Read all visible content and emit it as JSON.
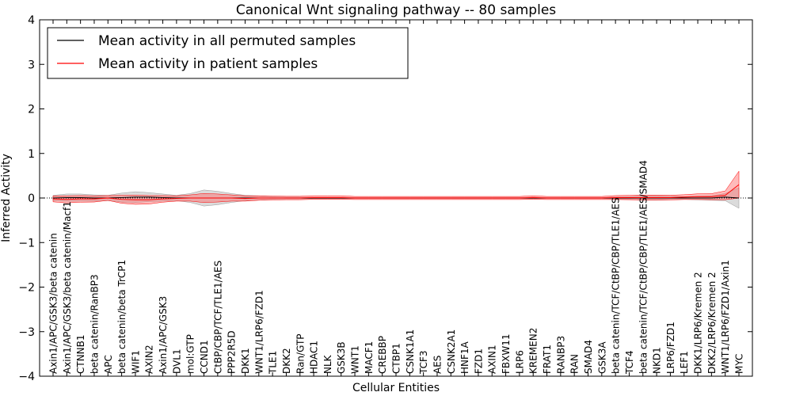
{
  "chart_data": {
    "type": "line",
    "title": "Canonical Wnt signaling pathway -- 80 samples",
    "xlabel": "Cellular Entities",
    "ylabel": "Inferred Activity",
    "ylim": [
      -4,
      4
    ],
    "yticks": [
      -4,
      -3,
      -2,
      -1,
      0,
      1,
      2,
      3,
      4
    ],
    "ytick_labels": [
      "−4",
      "−3",
      "−2",
      "−1",
      "0",
      "1",
      "2",
      "3",
      "4"
    ],
    "legend_position": "top-left",
    "colors": {
      "all": "#000000",
      "patient": "#ff0000",
      "all_band": "#b0b0b0",
      "patient_band": "#ff6666"
    },
    "categories": [
      "Axin1/APC/GSK3/beta catenin",
      "Axin1/APC/GSK3/beta catenin/Macf1",
      "CTNNB1",
      "beta catenin/RanBP3",
      "APC",
      "beta catenin/beta TrCP1",
      "WIF1",
      "AXIN2",
      "Axin1/APC/GSK3",
      "DVL1",
      "mol:GTP",
      "CCND1",
      "CtBP/CBP/TCF/TLE1/AES",
      "PPP2R5D",
      "DKK1",
      "WNT1/LRP6/FZD1",
      "TLE1",
      "DKK2",
      "Ran/GTP",
      "HDAC1",
      "NLK",
      "GSK3B",
      "WNT1",
      "MACF1",
      "CREBBP",
      "CTBP1",
      "CSNK1A1",
      "TCF3",
      "AES",
      "CSNK2A1",
      "HNF1A",
      "FZD1",
      "AXIN1",
      "FBXW11",
      "LRP6",
      "KREMEN2",
      "FRAT1",
      "RANBP3",
      "RAN",
      "SMAD4",
      "GSK3A",
      "beta catenin/TCF/CtBP/CBP/TLE1/AES",
      "TCF4",
      "beta catenin/TCF/CtBP/CBP/TLE1/AES/SMAD4",
      "NKD1",
      "LRP6/FZD1",
      "LEF1",
      "DKK1/LRP6/Kremen 2",
      "DKK2/LRP6/Kremen 2",
      "WNT1/LRP6/FZD1/Axin1",
      "MYC"
    ],
    "series": [
      {
        "name": "Mean activity in all permuted samples",
        "values": [
          0.0,
          0.01,
          0.01,
          0.0,
          0.0,
          0.01,
          0.02,
          0.02,
          0.01,
          0.0,
          0.0,
          0.0,
          0.0,
          0.0,
          0.0,
          0.0,
          0.0,
          0.0,
          0.0,
          0.0,
          0.0,
          0.0,
          0.0,
          0.0,
          0.0,
          0.0,
          0.0,
          0.0,
          0.0,
          0.0,
          0.0,
          0.0,
          0.0,
          0.0,
          0.0,
          0.0,
          0.0,
          0.0,
          0.0,
          0.0,
          0.0,
          0.0,
          0.0,
          0.0,
          0.0,
          0.0,
          0.0,
          0.0,
          0.0,
          0.02,
          0.0
        ],
        "band": [
          0.06,
          0.08,
          0.08,
          0.07,
          0.06,
          0.1,
          0.12,
          0.1,
          0.08,
          0.06,
          0.1,
          0.18,
          0.15,
          0.1,
          0.06,
          0.05,
          0.03,
          0.02,
          0.02,
          0.01,
          0.01,
          0.01,
          0.01,
          0.01,
          0.01,
          0.01,
          0.01,
          0.01,
          0.01,
          0.01,
          0.01,
          0.01,
          0.01,
          0.01,
          0.01,
          0.01,
          0.01,
          0.01,
          0.01,
          0.01,
          0.01,
          0.02,
          0.03,
          0.05,
          0.05,
          0.04,
          0.03,
          0.04,
          0.05,
          0.08,
          0.23
        ]
      },
      {
        "name": "Mean activity in patient samples",
        "values": [
          -0.02,
          -0.03,
          -0.02,
          -0.02,
          0.0,
          -0.03,
          -0.04,
          -0.04,
          -0.02,
          -0.01,
          0.0,
          0.0,
          0.0,
          0.0,
          -0.01,
          0.0,
          0.0,
          0.0,
          0.0,
          0.01,
          0.01,
          0.01,
          0.0,
          0.0,
          0.0,
          0.0,
          0.0,
          0.0,
          0.0,
          0.0,
          0.0,
          0.0,
          0.0,
          0.0,
          0.0,
          0.01,
          0.0,
          0.0,
          0.0,
          0.0,
          0.0,
          0.01,
          0.01,
          0.01,
          0.01,
          0.01,
          0.02,
          0.03,
          0.03,
          0.06,
          0.3
        ]
      }
    ]
  }
}
